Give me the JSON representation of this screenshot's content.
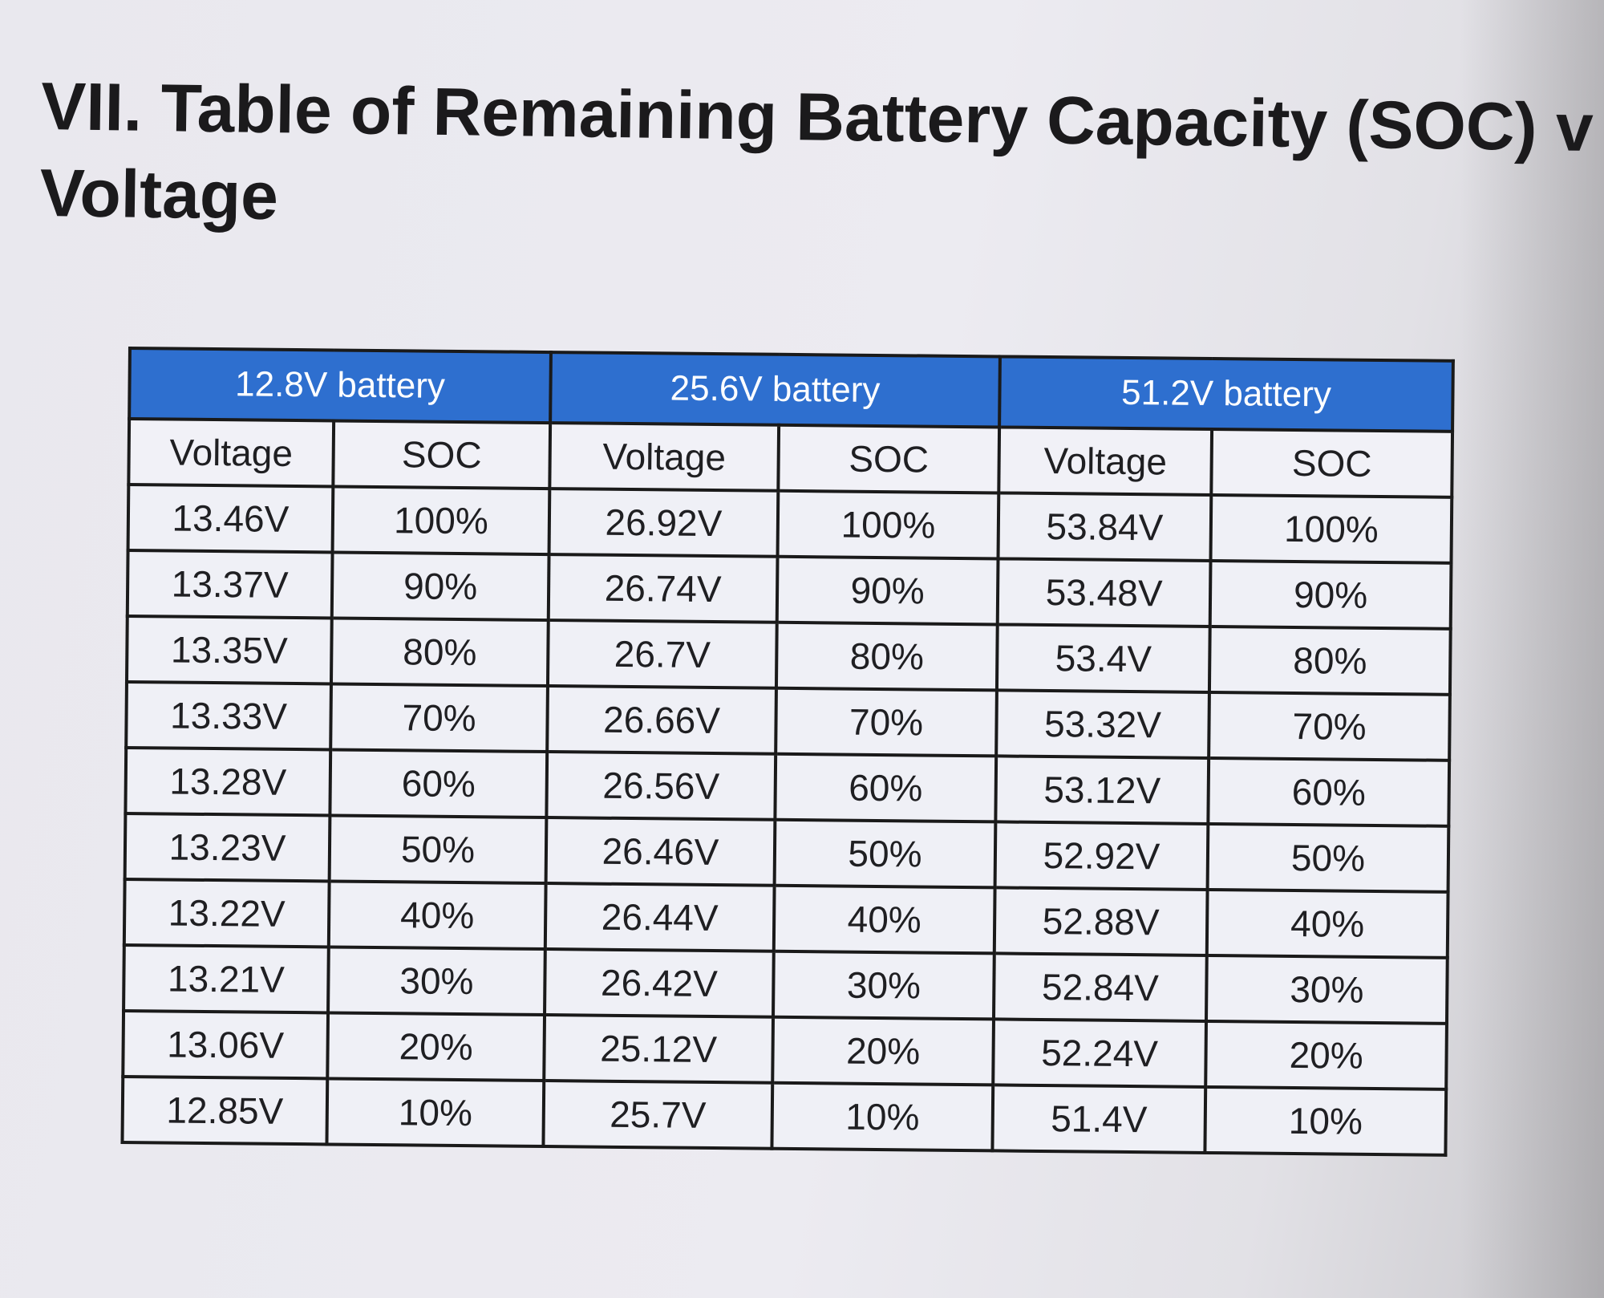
{
  "document": {
    "title_lines": [
      "VII. Table of Remaining Battery Capacity (SOC) v",
      "Voltage"
    ]
  },
  "table": {
    "groups": [
      {
        "label": "12.8V battery",
        "headers": [
          "Voltage",
          "SOC"
        ],
        "rows": [
          [
            "13.46V",
            "100%"
          ],
          [
            "13.37V",
            "90%"
          ],
          [
            "13.35V",
            "80%"
          ],
          [
            "13.33V",
            "70%"
          ],
          [
            "13.28V",
            "60%"
          ],
          [
            "13.23V",
            "50%"
          ],
          [
            "13.22V",
            "40%"
          ],
          [
            "13.21V",
            "30%"
          ],
          [
            "13.06V",
            "20%"
          ],
          [
            "12.85V",
            "10%"
          ]
        ]
      },
      {
        "label": "25.6V battery",
        "headers": [
          "Voltage",
          "SOC"
        ],
        "rows": [
          [
            "26.92V",
            "100%"
          ],
          [
            "26.74V",
            "90%"
          ],
          [
            "26.7V",
            "80%"
          ],
          [
            "26.66V",
            "70%"
          ],
          [
            "26.56V",
            "60%"
          ],
          [
            "26.46V",
            "50%"
          ],
          [
            "26.44V",
            "40%"
          ],
          [
            "26.42V",
            "30%"
          ],
          [
            "25.12V",
            "20%"
          ],
          [
            "25.7V",
            "10%"
          ]
        ]
      },
      {
        "label": "51.2V battery",
        "headers": [
          "Voltage",
          "SOC"
        ],
        "rows": [
          [
            "53.84V",
            "100%"
          ],
          [
            "53.48V",
            "90%"
          ],
          [
            "53.4V",
            "80%"
          ],
          [
            "53.32V",
            "70%"
          ],
          [
            "53.12V",
            "60%"
          ],
          [
            "52.92V",
            "50%"
          ],
          [
            "52.88V",
            "40%"
          ],
          [
            "52.84V",
            "30%"
          ],
          [
            "52.24V",
            "20%"
          ],
          [
            "51.4V",
            "10%"
          ]
        ]
      }
    ]
  },
  "colors": {
    "header_blue": "#2e6fcf",
    "border": "#1a1a1a",
    "paper": "#eceaf0"
  }
}
